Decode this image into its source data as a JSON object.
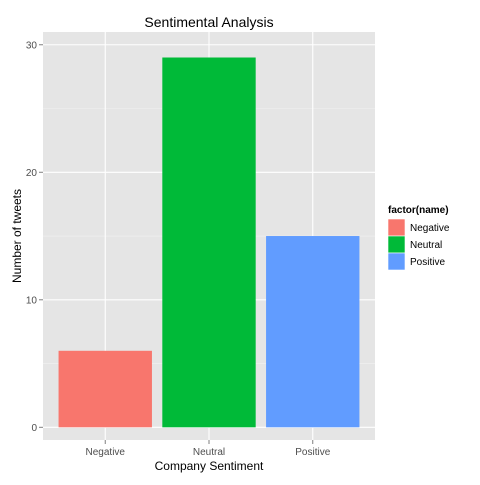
{
  "chart_data": {
    "type": "bar",
    "title": "Sentimental Analysis",
    "xlabel": "Company Sentiment",
    "ylabel": "Number of tweets",
    "categories": [
      "Negative",
      "Neutral",
      "Positive"
    ],
    "values": [
      6,
      29,
      15
    ],
    "colors": [
      "#F8766D",
      "#00BA38",
      "#619CFF"
    ],
    "ylim": [
      0,
      31
    ],
    "yticks": [
      0,
      10,
      20,
      30
    ],
    "grid": true,
    "legend": {
      "title": "factor(name)",
      "position": "right",
      "entries": [
        "Negative",
        "Neutral",
        "Positive"
      ]
    },
    "panel_background": "#E5E5E5",
    "grid_color": "#FFFFFF"
  }
}
